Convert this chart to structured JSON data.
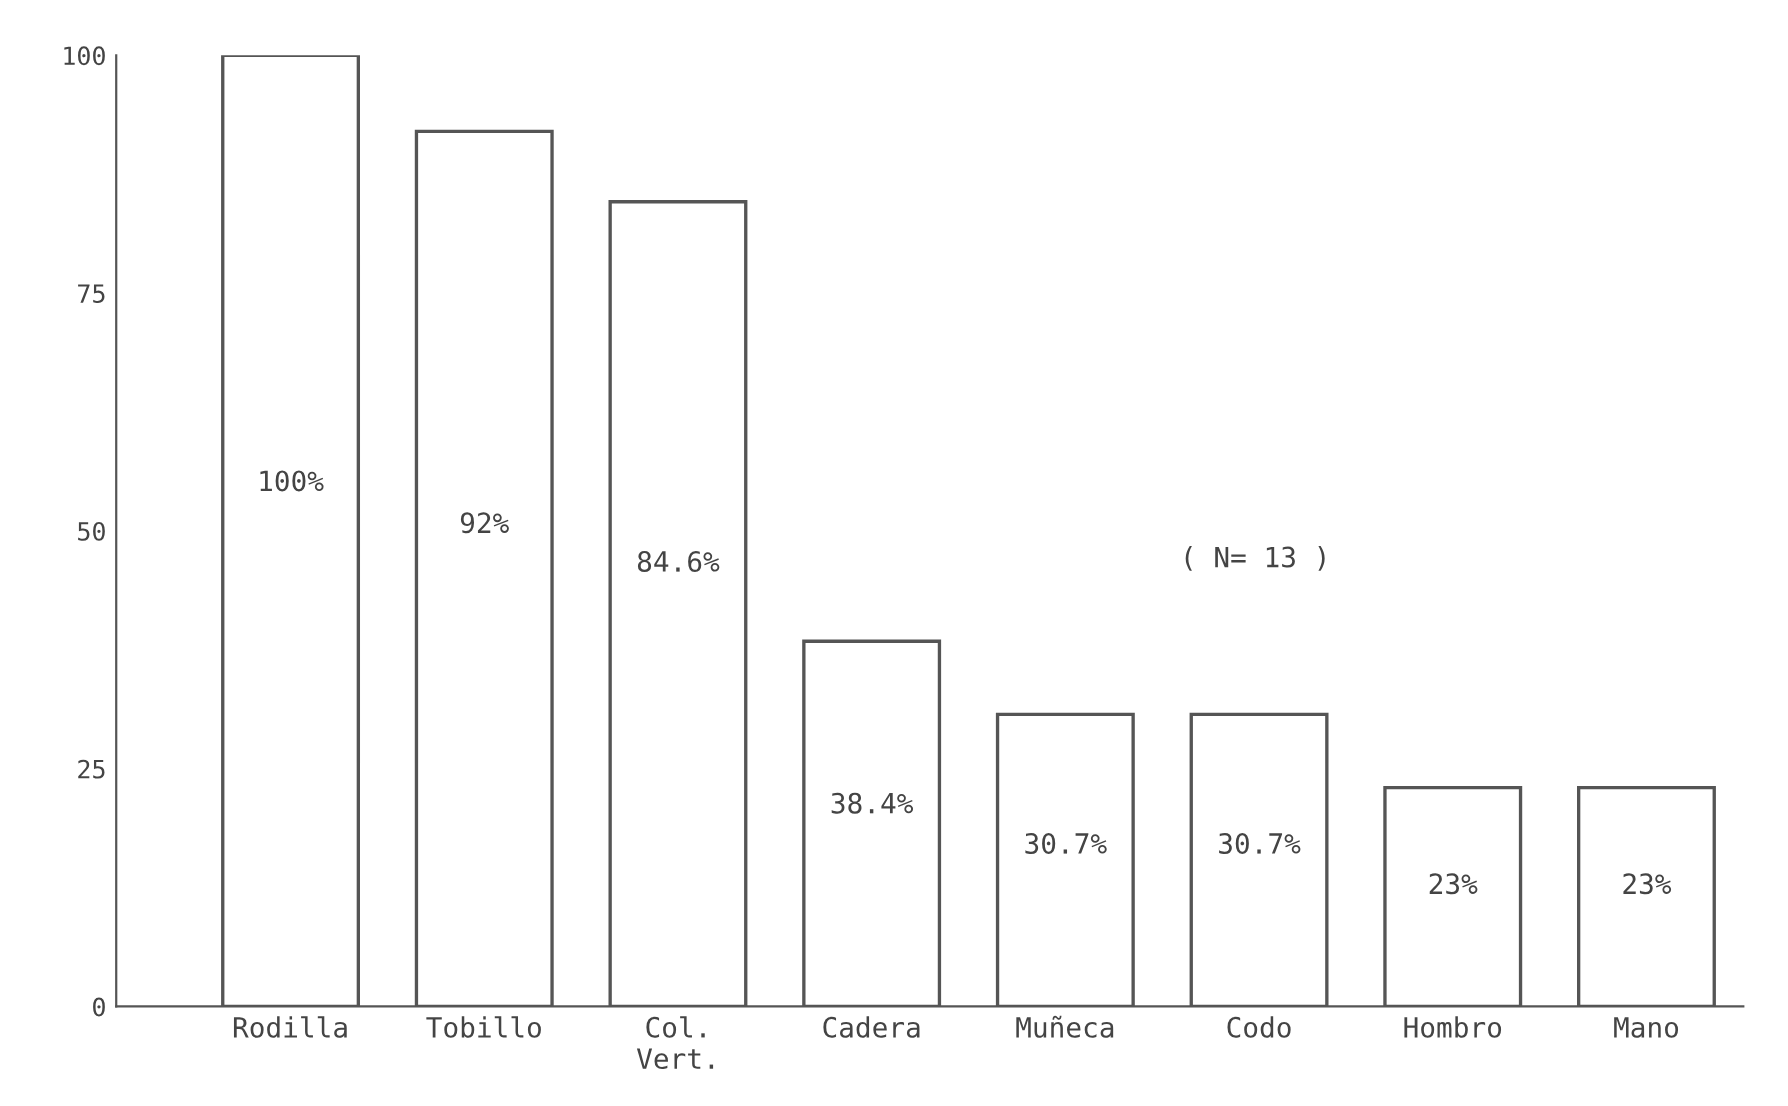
{
  "chart_data": {
    "type": "bar",
    "categories": [
      "Rodilla",
      "Tobillo",
      "Col.\nVert.",
      "Cadera",
      "Muñeca",
      "Codo",
      "Hombro",
      "Mano"
    ],
    "values": [
      100,
      92,
      84.6,
      38.4,
      30.7,
      30.7,
      23,
      23
    ],
    "value_labels": [
      "100%",
      "92%",
      "84.6%",
      "38.4%",
      "30.7%",
      "30.7%",
      "23%",
      "23%"
    ],
    "color": "#ffffff",
    "ylim": [
      0,
      100
    ],
    "yticks": [
      0,
      25,
      50,
      75,
      100
    ],
    "grid": false,
    "legend": false,
    "annotations": [
      "( N= 13 )"
    ]
  }
}
